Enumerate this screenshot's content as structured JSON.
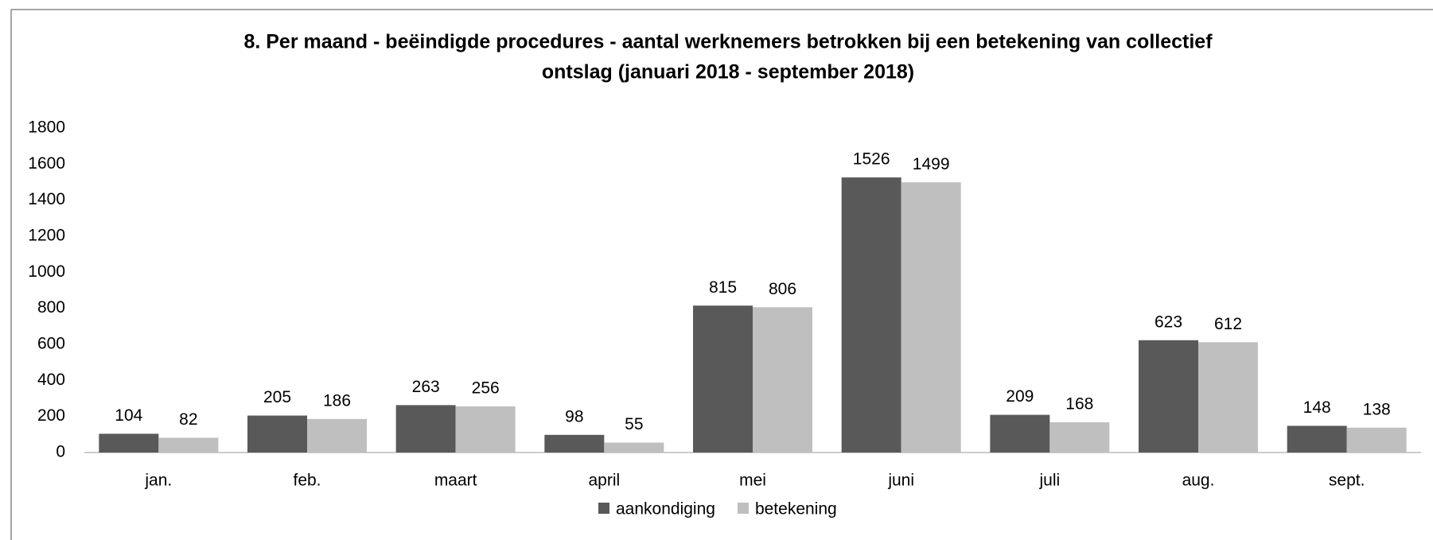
{
  "chart_data": {
    "type": "bar",
    "title": [
      "8. Per maand  - beëindigde procedures - aantal werknemers betrokken bij een betekening van collectief",
      "ontslag (januari 2018 -  september 2018)"
    ],
    "categories": [
      "jan.",
      "feb.",
      "maart",
      "april",
      "mei",
      "juni",
      "juli",
      "aug.",
      "sept."
    ],
    "series": [
      {
        "name": "aankondiging",
        "color": "#595959",
        "values": [
          104,
          205,
          263,
          98,
          815,
          1526,
          209,
          623,
          148
        ]
      },
      {
        "name": "betekening",
        "color": "#bfbfbf",
        "values": [
          82,
          186,
          256,
          55,
          806,
          1499,
          168,
          612,
          138
        ]
      }
    ],
    "ylim": [
      0,
      1800
    ],
    "yticks": [
      0,
      200,
      400,
      600,
      800,
      1000,
      1200,
      1400,
      1600,
      1800
    ],
    "grid": false,
    "legend": "bottom"
  }
}
